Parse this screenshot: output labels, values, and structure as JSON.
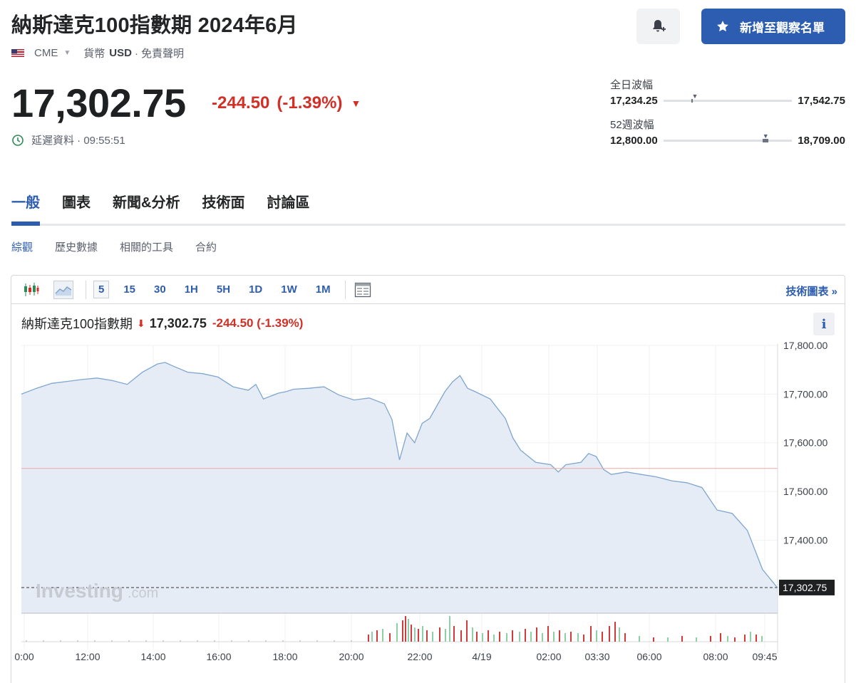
{
  "header": {
    "title": "納斯達克100指數期 2024年6月",
    "exchange": "CME",
    "currency_label": "貨幣",
    "currency": "USD",
    "disclaimer": "· 免責聲明",
    "watchlist_label": "新增至觀察名單"
  },
  "quote": {
    "price": "17,302.75",
    "change": "-244.50",
    "change_pct": "(-1.39%)",
    "arrow": "▼",
    "delay_text": "延遲資料 · 09:55:51"
  },
  "ranges": {
    "day": {
      "label": "全日波幅",
      "low": "17,234.25",
      "high": "17,542.75",
      "position": 0.22
    },
    "week52": {
      "label": "52週波幅",
      "low": "12,800.00",
      "high": "18,709.00",
      "position": 0.77
    }
  },
  "tabs": [
    "一般",
    "圖表",
    "新聞&分析",
    "技術面",
    "討論區"
  ],
  "subtabs": [
    "綜觀",
    "歷史數據",
    "相關的工具",
    "合約"
  ],
  "toolbar": {
    "timeframes": [
      "5",
      "15",
      "30",
      "1H",
      "5H",
      "1D",
      "1W",
      "1M"
    ],
    "active_timeframe": "5",
    "tech_chart_link": "技術圖表 »"
  },
  "chart_header": {
    "name": "納斯達克100指數期",
    "arrow": "⬇",
    "price": "17,302.75",
    "change": "-244.50 (-1.39%)",
    "info": "i"
  },
  "colors": {
    "accent": "#2d5db1",
    "negative": "#d22f27",
    "line": "#7fa6d0",
    "area": "#e6ecf5",
    "vol_up": "#8fcfa8",
    "vol_down": "#d23b3b"
  },
  "chart_data": {
    "type": "area",
    "ylim": [
      17250,
      17800
    ],
    "yticks": [
      "17,800.00",
      "17,700.00",
      "17,600.00",
      "17,500.00",
      "17,400.00"
    ],
    "ytick_values": [
      17800,
      17700,
      17600,
      17500,
      17400
    ],
    "xticks": [
      "0:00",
      "12:00",
      "14:00",
      "16:00",
      "18:00",
      "20:00",
      "22:00",
      "4/19",
      "02:00",
      "03:30",
      "06:00",
      "08:00",
      "09:45"
    ],
    "prev_close": 17547.25,
    "last": {
      "value": 17302.75,
      "label": "17,302.75"
    },
    "x": [
      0,
      2,
      4,
      6,
      8,
      10,
      12,
      14,
      16,
      18,
      19,
      20,
      22,
      24,
      26,
      28,
      30,
      31,
      32,
      34,
      35,
      36,
      38,
      40,
      42,
      44,
      46,
      48,
      49,
      50,
      51,
      52,
      53,
      54,
      56,
      57,
      58,
      59,
      60,
      62,
      63,
      64,
      65,
      66,
      68,
      70,
      71,
      72,
      74,
      75,
      76,
      77,
      78,
      80,
      82,
      84,
      86,
      88,
      90,
      92,
      94,
      96,
      98,
      100
    ],
    "y": [
      17700,
      17712,
      17722,
      17726,
      17730,
      17733,
      17728,
      17720,
      17745,
      17762,
      17765,
      17758,
      17745,
      17742,
      17735,
      17715,
      17708,
      17720,
      17690,
      17702,
      17705,
      17710,
      17712,
      17715,
      17698,
      17688,
      17692,
      17680,
      17648,
      17565,
      17620,
      17600,
      17640,
      17650,
      17705,
      17725,
      17738,
      17712,
      17705,
      17690,
      17670,
      17650,
      17610,
      17585,
      17560,
      17555,
      17540,
      17555,
      17560,
      17578,
      17572,
      17545,
      17535,
      17540,
      17535,
      17530,
      17522,
      17518,
      17508,
      17462,
      17455,
      17420,
      17340,
      17302
    ]
  },
  "watermark": {
    "brand": "Investing",
    "suffix": ".com"
  }
}
